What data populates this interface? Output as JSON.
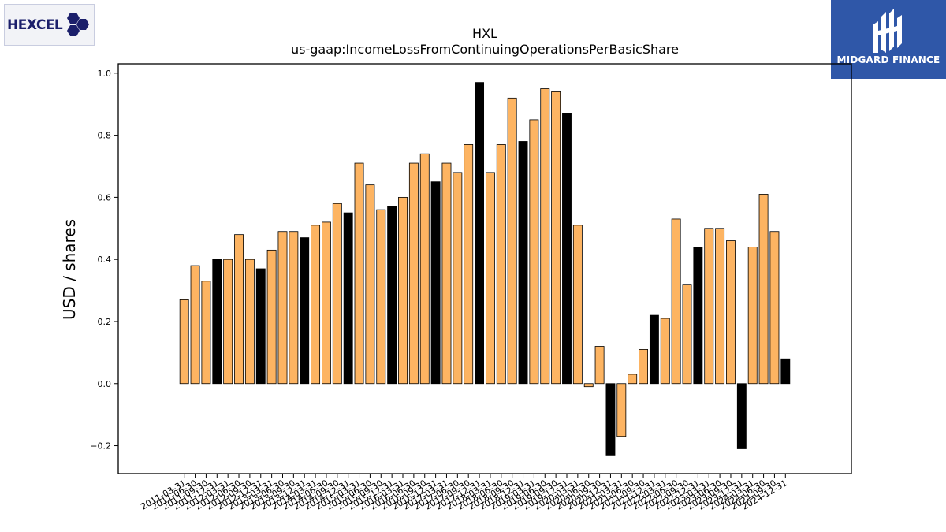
{
  "logos": {
    "left": "HEXCEL",
    "right": "MIDGARD FINANCE"
  },
  "chart_data": {
    "type": "bar",
    "title": "HXL",
    "subtitle": "us-gaap:IncomeLossFromContinuingOperationsPerBasicShare",
    "xlabel": "",
    "ylabel": "USD / shares",
    "ylim": [
      -0.29,
      1.03
    ],
    "yticks": [
      -0.2,
      0.0,
      0.2,
      0.4,
      0.6,
      0.8,
      1.0
    ],
    "ytick_labels": [
      "−0.2",
      "0.0",
      "0.2",
      "0.4",
      "0.6",
      "0.8",
      "1.0"
    ],
    "grid": false,
    "colors": {
      "quarterly": "#fdb462",
      "annual": "#000000",
      "edge": "#000000"
    },
    "categories": [
      "2011-03-31",
      "2011-06-30",
      "2011-09-30",
      "2011-12-31",
      "2012-03-31",
      "2012-06-30",
      "2012-09-30",
      "2012-12-31",
      "2013-03-31",
      "2013-06-30",
      "2013-09-30",
      "2013-12-31",
      "2014-03-31",
      "2014-06-30",
      "2014-09-30",
      "2014-12-31",
      "2015-03-31",
      "2015-06-30",
      "2015-09-30",
      "2015-12-31",
      "2016-03-31",
      "2016-06-30",
      "2016-09-30",
      "2016-12-31",
      "2017-03-31",
      "2017-06-30",
      "2017-09-30",
      "2017-12-31",
      "2018-03-31",
      "2018-06-30",
      "2018-09-30",
      "2018-12-31",
      "2019-03-31",
      "2019-06-30",
      "2019-09-30",
      "2019-12-31",
      "2020-03-31",
      "2020-06-30",
      "2020-09-30",
      "2020-12-31",
      "2021-03-31",
      "2021-06-30",
      "2021-09-30",
      "2021-12-31",
      "2022-03-31",
      "2022-06-30",
      "2022-09-30",
      "2022-12-31",
      "2023-03-31",
      "2023-06-30",
      "2023-09-30",
      "2023-12-31",
      "2024-03-31",
      "2024-06-30",
      "2024-09-30",
      "2024-12-31"
    ],
    "values": [
      0.27,
      0.38,
      0.33,
      0.4,
      0.4,
      0.48,
      0.4,
      0.37,
      0.43,
      0.49,
      0.49,
      0.47,
      0.51,
      0.52,
      0.58,
      0.55,
      0.71,
      0.64,
      0.56,
      0.57,
      0.6,
      0.71,
      0.74,
      0.65,
      0.71,
      0.68,
      0.77,
      0.97,
      0.68,
      0.77,
      0.92,
      0.78,
      0.85,
      0.95,
      0.94,
      0.87,
      0.51,
      -0.01,
      0.12,
      -0.23,
      -0.17,
      0.03,
      0.11,
      0.22,
      0.21,
      0.53,
      0.32,
      0.44,
      0.5,
      0.5,
      0.46,
      -0.21,
      0.44,
      0.61,
      0.49,
      0.08
    ],
    "annual_flags": [
      false,
      false,
      false,
      true,
      false,
      false,
      false,
      true,
      false,
      false,
      false,
      true,
      false,
      false,
      false,
      true,
      false,
      false,
      false,
      true,
      false,
      false,
      false,
      true,
      false,
      false,
      false,
      true,
      false,
      false,
      false,
      true,
      false,
      false,
      false,
      true,
      false,
      false,
      false,
      true,
      false,
      false,
      false,
      true,
      false,
      false,
      false,
      true,
      false,
      false,
      false,
      true,
      false,
      false,
      false,
      true
    ]
  }
}
